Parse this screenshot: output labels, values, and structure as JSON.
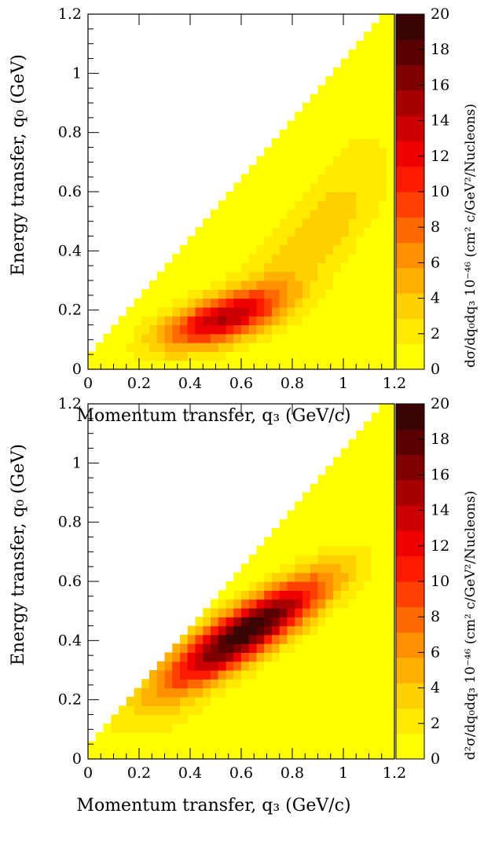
{
  "colorscale": {
    "stops": [
      "#ffff00",
      "#ffea00",
      "#ffd000",
      "#ffb000",
      "#ff9000",
      "#ff6a00",
      "#ff4000",
      "#ff1a00",
      "#ee0000",
      "#cc0000",
      "#a80000",
      "#800000",
      "#5a0000",
      "#3a0505"
    ]
  },
  "chart_data": [
    {
      "type": "heatmap",
      "xlabel": "Momentum transfer, q₃ (GeV/c)",
      "ylabel": "Energy transfer, q₀ (GeV)",
      "colorbar_label": "dσ/dq₀dq₃ 10⁻⁴⁶ (cm² c/GeV²/Nucleons)",
      "xlim": [
        0,
        1.2
      ],
      "ylim": [
        0,
        1.2
      ],
      "zlim": [
        0,
        20
      ],
      "x_ticks": [
        "0",
        "0.2",
        "0.4",
        "0.6",
        "0.8",
        "1",
        "1.2"
      ],
      "y_ticks": [
        "0",
        "0.2",
        "0.4",
        "0.6",
        "0.8",
        "1",
        "1.2"
      ],
      "z_ticks": [
        "0",
        "2",
        "4",
        "6",
        "8",
        "10",
        "12",
        "14",
        "16",
        "18",
        "20"
      ],
      "bins": [
        40,
        40
      ],
      "allowed_region": "q0 <= q3 + 0.04",
      "peak": {
        "q3": 0.52,
        "q0": 0.17,
        "value": 13.5
      },
      "features": [
        {
          "q3_center": 0.52,
          "q0_center": 0.17,
          "amplitude": 13.5
        },
        {
          "q3_center": 0.85,
          "q0_center": 0.4,
          "amplitude": 3.0
        },
        {
          "q3_center": 1.0,
          "q0_center": 0.65,
          "amplitude": 1.5
        }
      ]
    },
    {
      "type": "heatmap",
      "xlabel": "Momentum transfer, q₃ (GeV/c)",
      "ylabel": "Energy transfer, q₀ (GeV)",
      "colorbar_label": "d²σ/dq₀dq₃ 10⁻⁴⁶ (cm² c/GeV²/Nucleons)",
      "xlim": [
        0,
        1.2
      ],
      "ylim": [
        0,
        1.2
      ],
      "zlim": [
        0,
        20
      ],
      "x_ticks": [
        "0",
        "0.2",
        "0.4",
        "0.6",
        "0.8",
        "1",
        "1.2"
      ],
      "y_ticks": [
        "0",
        "0.2",
        "0.4",
        "0.6",
        "0.8",
        "1",
        "1.2"
      ],
      "z_ticks": [
        "0",
        "2",
        "4",
        "6",
        "8",
        "10",
        "12",
        "14",
        "16",
        "18",
        "20"
      ],
      "bins": [
        40,
        40
      ],
      "allowed_region": "q0 <= q3 + 0.04",
      "peak": {
        "q3": 0.62,
        "q0": 0.43,
        "value": 20
      },
      "features": [
        {
          "q3_center": 0.62,
          "q0_center": 0.43,
          "amplitude": 20
        },
        {
          "q3_center": 0.3,
          "q0_center": 0.15,
          "amplitude": 1.5
        }
      ]
    }
  ]
}
